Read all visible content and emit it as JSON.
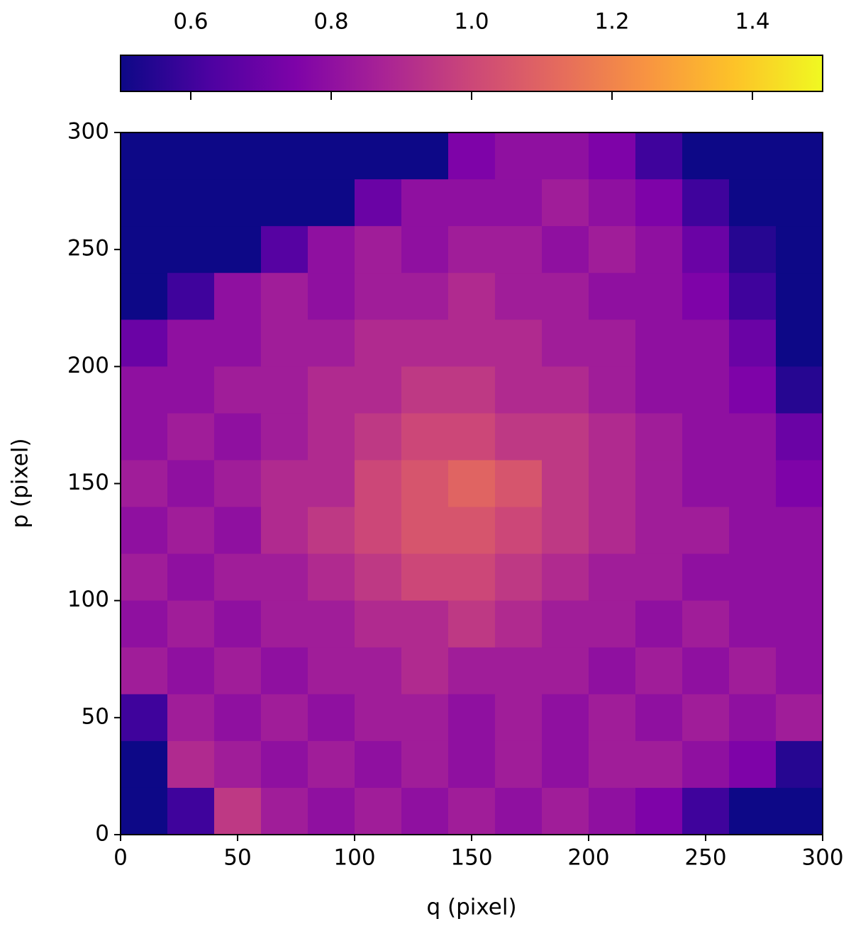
{
  "chart_data": {
    "type": "heatmap",
    "xlabel": "q (pixel)",
    "ylabel": "p (pixel)",
    "colormap": "plasma",
    "x": [
      10,
      30,
      50,
      70,
      90,
      110,
      130,
      150,
      170,
      190,
      210,
      230,
      250,
      270,
      290
    ],
    "y": [
      290,
      270,
      250,
      230,
      210,
      190,
      170,
      150,
      130,
      110,
      90,
      70,
      50,
      30,
      10
    ],
    "cell_size": 20,
    "values": [
      [
        0.5,
        0.5,
        0.5,
        0.5,
        0.5,
        0.5,
        0.5,
        0.75,
        0.8,
        0.8,
        0.75,
        0.6,
        0.5,
        0.5,
        0.5
      ],
      [
        0.5,
        0.5,
        0.5,
        0.5,
        0.5,
        0.7,
        0.8,
        0.8,
        0.8,
        0.85,
        0.8,
        0.75,
        0.6,
        0.5,
        0.5
      ],
      [
        0.5,
        0.5,
        0.5,
        0.65,
        0.8,
        0.85,
        0.8,
        0.85,
        0.85,
        0.8,
        0.85,
        0.8,
        0.7,
        0.55,
        0.5
      ],
      [
        0.5,
        0.6,
        0.8,
        0.85,
        0.8,
        0.85,
        0.85,
        0.9,
        0.85,
        0.85,
        0.8,
        0.8,
        0.75,
        0.6,
        0.5
      ],
      [
        0.7,
        0.8,
        0.8,
        0.85,
        0.85,
        0.9,
        0.9,
        0.9,
        0.9,
        0.85,
        0.85,
        0.8,
        0.8,
        0.7,
        0.5
      ],
      [
        0.8,
        0.8,
        0.85,
        0.85,
        0.9,
        0.9,
        0.95,
        0.95,
        0.9,
        0.9,
        0.85,
        0.8,
        0.8,
        0.75,
        0.55
      ],
      [
        0.8,
        0.85,
        0.8,
        0.85,
        0.9,
        0.95,
        1.0,
        1.0,
        0.95,
        0.95,
        0.9,
        0.85,
        0.8,
        0.8,
        0.7
      ],
      [
        0.85,
        0.8,
        0.85,
        0.9,
        0.9,
        1.0,
        1.05,
        1.1,
        1.05,
        0.95,
        0.9,
        0.85,
        0.8,
        0.8,
        0.75
      ],
      [
        0.8,
        0.85,
        0.8,
        0.9,
        0.95,
        1.0,
        1.05,
        1.05,
        1.0,
        0.95,
        0.9,
        0.85,
        0.85,
        0.8,
        0.8
      ],
      [
        0.85,
        0.8,
        0.85,
        0.85,
        0.9,
        0.95,
        1.0,
        1.0,
        0.95,
        0.9,
        0.85,
        0.85,
        0.8,
        0.8,
        0.8
      ],
      [
        0.8,
        0.85,
        0.8,
        0.85,
        0.85,
        0.9,
        0.9,
        0.95,
        0.9,
        0.85,
        0.85,
        0.8,
        0.85,
        0.8,
        0.8
      ],
      [
        0.85,
        0.8,
        0.85,
        0.8,
        0.85,
        0.85,
        0.9,
        0.85,
        0.85,
        0.85,
        0.8,
        0.85,
        0.8,
        0.85,
        0.8
      ],
      [
        0.6,
        0.85,
        0.8,
        0.85,
        0.8,
        0.85,
        0.85,
        0.8,
        0.85,
        0.8,
        0.85,
        0.8,
        0.85,
        0.8,
        0.85
      ],
      [
        0.5,
        0.9,
        0.85,
        0.8,
        0.85,
        0.8,
        0.85,
        0.8,
        0.85,
        0.8,
        0.85,
        0.85,
        0.8,
        0.75,
        0.55
      ],
      [
        0.5,
        0.6,
        0.95,
        0.85,
        0.8,
        0.85,
        0.8,
        0.85,
        0.8,
        0.85,
        0.8,
        0.75,
        0.6,
        0.5,
        0.5
      ]
    ],
    "xlim": [
      0,
      300
    ],
    "ylim": [
      0,
      300
    ],
    "xticks": [
      0,
      50,
      100,
      150,
      200,
      250,
      300
    ],
    "yticks": [
      0,
      50,
      100,
      150,
      200,
      250,
      300
    ],
    "colorbar": {
      "lim": [
        0.5,
        1.5
      ],
      "ticks": [
        0.6,
        0.8,
        {
          "value": 1,
          "label": "1.0"
        },
        1.2,
        1.4
      ]
    }
  }
}
